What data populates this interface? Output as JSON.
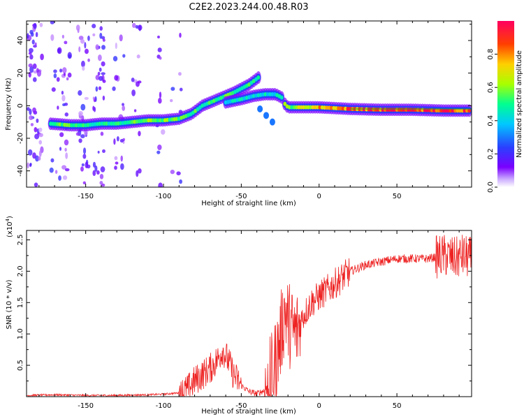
{
  "title": "C2E2.2023.244.00.48.R03",
  "chart_data": [
    {
      "type": "heatmap",
      "xlabel": "Height of straight line (km)",
      "ylabel": "Frequency (Hz)",
      "xlim": [
        -188,
        98
      ],
      "ylim": [
        -50,
        52
      ],
      "x_ticks": [
        -150,
        -100,
        -50,
        0,
        50
      ],
      "y_ticks": [
        -40,
        -20,
        0,
        20,
        40
      ],
      "colorbar": {
        "label": "Normalized spectral amplitude",
        "range": [
          0,
          1
        ],
        "ticks": [
          0.0,
          0.2,
          0.4,
          0.6,
          0.8
        ],
        "colors": [
          "#ffffff",
          "#7a00ff",
          "#2a40ff",
          "#00c8ff",
          "#00ff90",
          "#a8ff00",
          "#ffd000",
          "#ff4000",
          "#ff0060"
        ]
      },
      "ridge": [
        {
          "x": -173,
          "y": -11,
          "amp": 0.55
        },
        {
          "x": -160,
          "y": -12,
          "amp": 0.55
        },
        {
          "x": -150,
          "y": -12,
          "amp": 0.5
        },
        {
          "x": -140,
          "y": -11,
          "amp": 0.5
        },
        {
          "x": -130,
          "y": -11,
          "amp": 0.5
        },
        {
          "x": -120,
          "y": -10,
          "amp": 0.55
        },
        {
          "x": -110,
          "y": -9,
          "amp": 0.6
        },
        {
          "x": -100,
          "y": -9,
          "amp": 0.6
        },
        {
          "x": -90,
          "y": -8,
          "amp": 0.55
        },
        {
          "x": -82,
          "y": -5,
          "amp": 0.55
        },
        {
          "x": -75,
          "y": 0,
          "amp": 0.5
        },
        {
          "x": -65,
          "y": 4,
          "amp": 0.55
        },
        {
          "x": -55,
          "y": 8,
          "amp": 0.55
        },
        {
          "x": -45,
          "y": 13,
          "amp": 0.55
        },
        {
          "x": -38,
          "y": 18,
          "amp": 0.5
        },
        {
          "x": -20,
          "y": -1,
          "amp": 0.6
        },
        {
          "x": -10,
          "y": -1,
          "amp": 0.7
        },
        {
          "x": 0,
          "y": -1,
          "amp": 0.8
        },
        {
          "x": 10,
          "y": -1.5,
          "amp": 0.85
        },
        {
          "x": 20,
          "y": -2,
          "amp": 0.9
        },
        {
          "x": 40,
          "y": -2.5,
          "amp": 0.95
        },
        {
          "x": 60,
          "y": -2.5,
          "amp": 0.95
        },
        {
          "x": 80,
          "y": -3,
          "amp": 0.95
        },
        {
          "x": 98,
          "y": -3,
          "amp": 0.95
        }
      ]
    },
    {
      "type": "line",
      "xlabel": "Height of straight line (km)",
      "ylabel": "SNR (10 * v/v)",
      "y_multiplier_label": "(x10",
      "y_multiplier_exp": "4",
      "y_multiplier_close": ")",
      "xlim": [
        -188,
        98
      ],
      "ylim": [
        0,
        2.65
      ],
      "x_ticks": [
        -150,
        -100,
        -50,
        0,
        50
      ],
      "y_ticks": [
        0.5,
        1.0,
        1.5,
        2.0,
        2.5
      ],
      "grid": false,
      "color": "#ee2222",
      "series": [
        {
          "x": [
            -188,
            -170,
            -150,
            -130,
            -110,
            -100,
            -90,
            -85,
            -80,
            -75,
            -70,
            -65,
            -62,
            -58,
            -55,
            -50,
            -45,
            -40,
            -35,
            -30,
            -25,
            -22,
            -20,
            -18,
            -15,
            -10,
            -5,
            0,
            5,
            10,
            20,
            30,
            40,
            50,
            60,
            70,
            80,
            88,
            92,
            98
          ],
          "y": [
            0.02,
            0.03,
            0.02,
            0.02,
            0.03,
            0.04,
            0.06,
            0.1,
            0.25,
            0.35,
            0.45,
            0.6,
            0.75,
            0.55,
            0.35,
            0.18,
            0.08,
            0.05,
            0.1,
            0.35,
            0.9,
            1.4,
            1.2,
            1.1,
            1.0,
            1.3,
            1.5,
            1.6,
            1.7,
            1.8,
            2.0,
            2.1,
            2.15,
            2.2,
            2.2,
            2.2,
            2.25,
            2.2,
            2.25,
            2.2
          ]
        }
      ]
    }
  ]
}
